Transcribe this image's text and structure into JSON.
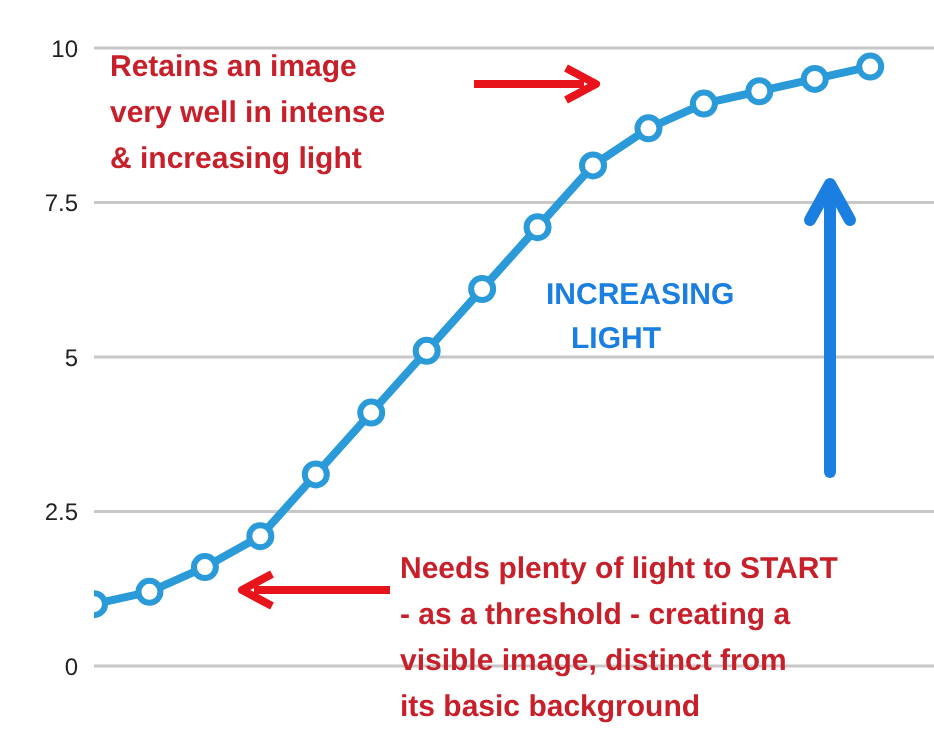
{
  "chart_data": {
    "type": "line",
    "categories": [
      null,
      null,
      null,
      null,
      null,
      null,
      null,
      null,
      null,
      null,
      null,
      null,
      null,
      null,
      null
    ],
    "series": [
      {
        "color": "#2a9ad8",
        "values": [
          1.0,
          1.2,
          1.6,
          2.1,
          3.1,
          4.1,
          5.1,
          6.1,
          7.1,
          8.1,
          8.7,
          9.1,
          9.3,
          9.5,
          9.7
        ]
      }
    ],
    "ylim": [
      0,
      10
    ],
    "yticks": [
      0,
      2.5,
      5,
      7.5,
      10
    ],
    "grid": "y",
    "marker": "circle",
    "line_style": "solid",
    "annotations": [
      "Retains an image\nvery well in intense\n& increasing light",
      "INCREASING\n   LIGHT",
      "Needs plenty of light to START\n- as a threshold - creating a\nvisible image, distinct from\nits basic background"
    ]
  }
}
